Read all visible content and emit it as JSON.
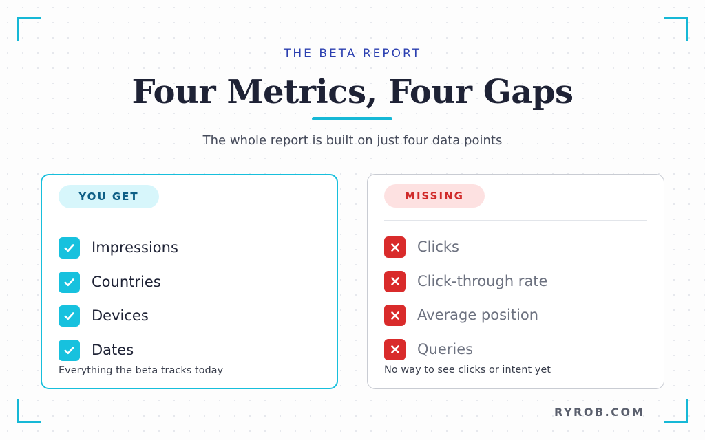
{
  "header": {
    "eyebrow": "THE BETA REPORT",
    "title": "Four Metrics, Four Gaps",
    "subtitle": "The whole report is built on just four data points"
  },
  "you_get": {
    "badge": "YOU GET",
    "items": [
      "Impressions",
      "Countries",
      "Devices",
      "Dates"
    ],
    "caption": "Everything the beta tracks today"
  },
  "missing": {
    "badge": "MISSING",
    "items": [
      "Clicks",
      "Click-through rate",
      "Average position",
      "Queries"
    ],
    "caption": "No way to see clicks or intent yet"
  },
  "footer": {
    "brand": "RYROB.COM"
  },
  "icons": {
    "included": "check-icon",
    "excluded": "cross-icon"
  },
  "colors": {
    "accent": "#16b8d6",
    "missing": "#d92b2b",
    "eyebrow": "#2b3fb0"
  }
}
